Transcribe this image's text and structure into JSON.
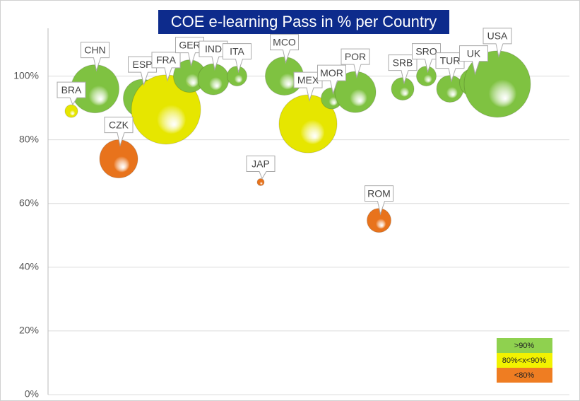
{
  "chart_data": {
    "type": "bubble",
    "title": "COE e-learning Pass in % per Country",
    "categories": [
      "BRA",
      "CHN",
      "CZK",
      "ESP",
      "FRA",
      "GER",
      "IND",
      "ITA",
      "JAP",
      "MCO",
      "MEX",
      "MOR",
      "POR",
      "ROM",
      "SRB",
      "SRO",
      "TUR",
      "UK",
      "USA"
    ],
    "values": [
      89,
      96,
      74,
      93,
      89.5,
      100,
      99,
      100,
      66.7,
      100,
      85,
      93,
      95,
      54.7,
      96,
      100,
      96,
      98,
      97.5
    ],
    "sizes": [
      9,
      34,
      27,
      27,
      49,
      23,
      22,
      14,
      5,
      27,
      41,
      15,
      29,
      17,
      16,
      14,
      19,
      20,
      47
    ],
    "colors": [
      "#e6e600",
      "#7fc241",
      "#e8731c",
      "#7fc241",
      "#e6e600",
      "#7fc241",
      "#7fc241",
      "#7fc241",
      "#e8731c",
      "#7fc241",
      "#e6e600",
      "#7fc241",
      "#7fc241",
      "#e8731c",
      "#7fc241",
      "#7fc241",
      "#7fc241",
      "#7fc241",
      "#7fc241"
    ],
    "ylim": [
      0,
      115
    ],
    "yticks": [
      {
        "value": 0,
        "label": "0%"
      },
      {
        "value": 20,
        "label": "20%"
      },
      {
        "value": 40,
        "label": "40%"
      },
      {
        "value": 60,
        "label": "60%"
      },
      {
        "value": 80,
        "label": "80%"
      },
      {
        "value": 100,
        "label": "100%"
      }
    ],
    "grid": true,
    "legend": [
      {
        "label": ">90%",
        "color": "#8fd14f"
      },
      {
        "label": "80%<x<90%",
        "color": "#f2f200"
      },
      {
        "label": "<80%",
        "color": "#ef7d22"
      }
    ]
  }
}
